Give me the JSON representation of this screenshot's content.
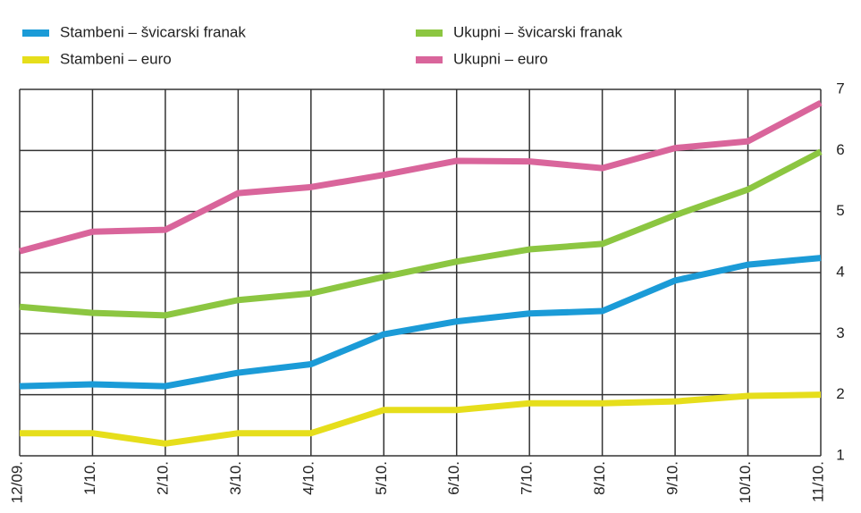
{
  "chart_data": {
    "type": "line",
    "categories": [
      "12/09.",
      "1/10.",
      "2/10.",
      "3/10.",
      "4/10.",
      "5/10.",
      "6/10.",
      "7/10.",
      "8/10.",
      "9/10.",
      "10/10.",
      "11/10."
    ],
    "series": [
      {
        "name": "Stambeni – švicarski franak",
        "color": "#1b9bd7",
        "values": [
          2.14,
          2.17,
          2.14,
          2.36,
          2.5,
          2.99,
          3.2,
          3.33,
          3.37,
          3.87,
          4.13,
          4.24
        ]
      },
      {
        "name": "Ukupni – švicarski franak",
        "color": "#8cc641",
        "values": [
          3.44,
          3.34,
          3.3,
          3.55,
          3.66,
          3.93,
          4.18,
          4.38,
          4.47,
          4.94,
          5.36,
          5.98
        ]
      },
      {
        "name": "Stambeni – euro",
        "color": "#e6de1b",
        "values": [
          1.37,
          1.37,
          1.2,
          1.37,
          1.37,
          1.75,
          1.75,
          1.86,
          1.86,
          1.89,
          1.98,
          2.0
        ]
      },
      {
        "name": "Ukupni – euro",
        "color": "#d9659b",
        "values": [
          4.35,
          4.67,
          4.7,
          5.3,
          5.4,
          5.6,
          5.83,
          5.82,
          5.71,
          6.04,
          6.15,
          6.78
        ]
      }
    ],
    "ylim": [
      1,
      7
    ],
    "yticks": [
      1,
      2,
      3,
      4,
      5,
      6,
      7
    ],
    "grid": true,
    "y_axis_side": "right"
  }
}
